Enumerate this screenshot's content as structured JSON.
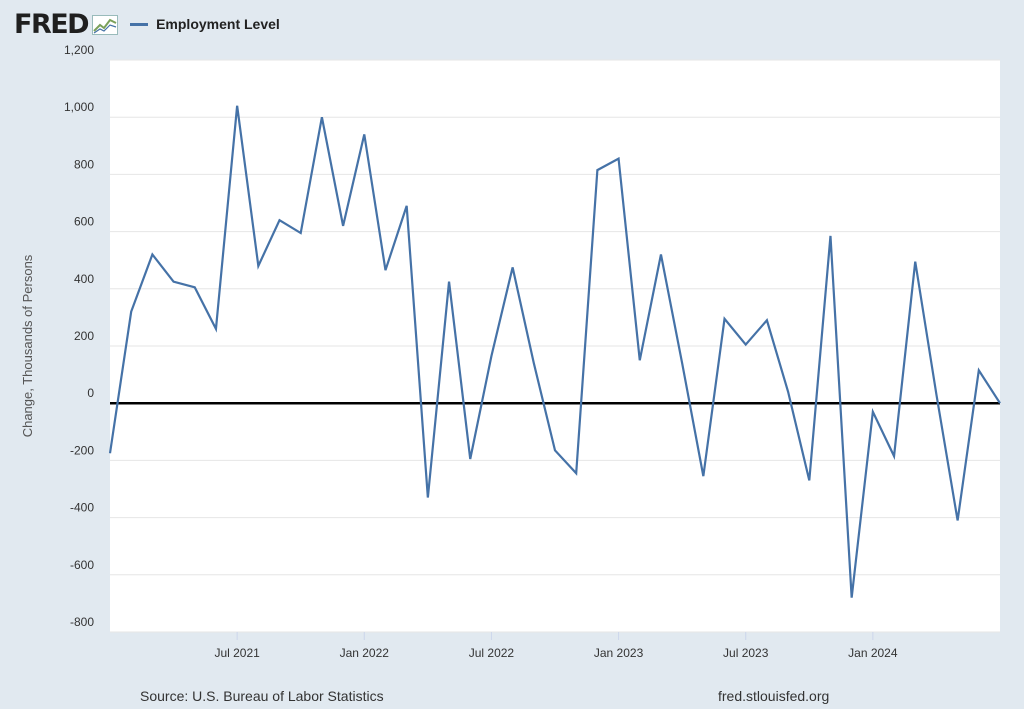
{
  "header": {
    "logo_text": "FRED",
    "logo_icon": "fred-chart-icon",
    "legend_label": "Employment Level"
  },
  "footer": {
    "source": "Source: U.S. Bureau of Labor Statistics",
    "site": "fred.stlouisfed.org"
  },
  "chart_data": {
    "type": "line",
    "ylabel": "Change, Thousands of Persons",
    "ylim": [
      -800,
      1200
    ],
    "yticks": [
      1200,
      1000,
      800,
      600,
      400,
      200,
      0,
      -200,
      -400,
      -600,
      -800
    ],
    "ytick_labels": [
      "1,200",
      "1,000",
      "800",
      "600",
      "400",
      "200",
      "0",
      "-200",
      "-400",
      "-600",
      "-800"
    ],
    "xticks": [
      {
        "label": "Jul 2021",
        "x": "2021-07"
      },
      {
        "label": "Jan 2022",
        "x": "2022-01"
      },
      {
        "label": "Jul 2022",
        "x": "2022-07"
      },
      {
        "label": "Jan 2023",
        "x": "2023-01"
      },
      {
        "label": "Jul 2023",
        "x": "2023-07"
      },
      {
        "label": "Jan 2024",
        "x": "2024-01"
      }
    ],
    "grid": true,
    "zero_line": true,
    "legend_position": "top-left",
    "line_color": "#4572a7",
    "series": [
      {
        "name": "Employment Level",
        "x": [
          "2021-01",
          "2021-02",
          "2021-03",
          "2021-04",
          "2021-05",
          "2021-06",
          "2021-07",
          "2021-08",
          "2021-09",
          "2021-10",
          "2021-11",
          "2021-12",
          "2022-01",
          "2022-02",
          "2022-03",
          "2022-04",
          "2022-05",
          "2022-06",
          "2022-07",
          "2022-08",
          "2022-09",
          "2022-10",
          "2022-11",
          "2022-12",
          "2023-01",
          "2023-02",
          "2023-03",
          "2023-04",
          "2023-05",
          "2023-06",
          "2023-07",
          "2023-08",
          "2023-09",
          "2023-10",
          "2023-11",
          "2023-12",
          "2024-01",
          "2024-02",
          "2024-03",
          "2024-04",
          "2024-05",
          "2024-06",
          "2024-07"
        ],
        "values": [
          -175,
          320,
          520,
          425,
          405,
          260,
          1040,
          480,
          640,
          595,
          1000,
          620,
          940,
          465,
          690,
          -330,
          425,
          -195,
          165,
          475,
          140,
          -165,
          -245,
          815,
          855,
          150,
          520,
          140,
          -255,
          295,
          205,
          290,
          40,
          -270,
          585,
          -680,
          -30,
          -185,
          495,
          30,
          -410,
          115,
          0
        ]
      }
    ]
  }
}
